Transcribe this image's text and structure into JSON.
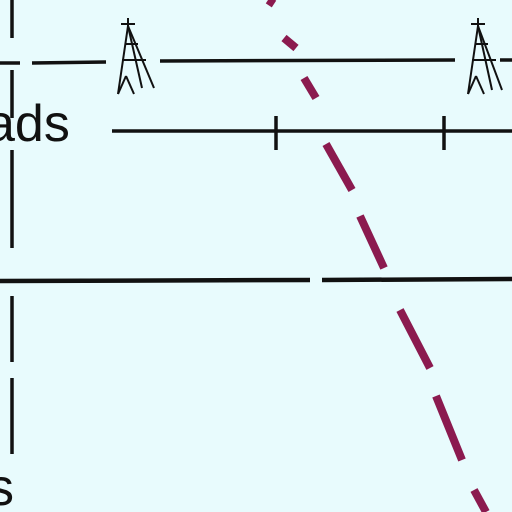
{
  "map": {
    "labels": {
      "upper": "ads",
      "lower": "s"
    },
    "colors": {
      "background": "#e8fbfd",
      "ink": "#111111",
      "boundary": "#8b1a4f"
    },
    "symbols": [
      "transmission-tower-icon",
      "transmission-tower-icon"
    ]
  }
}
